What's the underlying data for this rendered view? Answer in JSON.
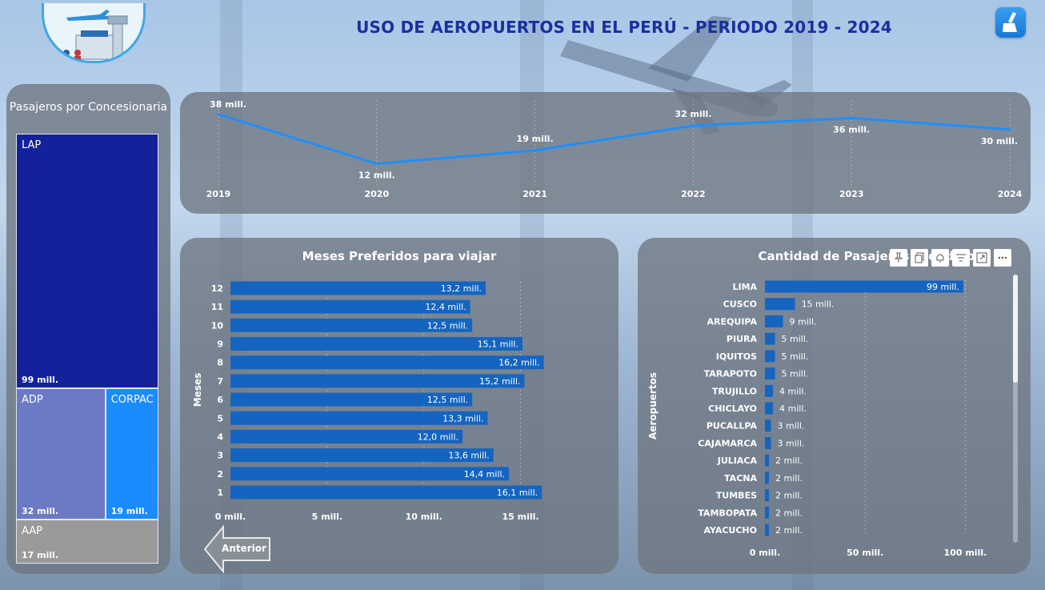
{
  "header": {
    "title": "USO DE AEROPUERTOS EN EL PERÚ - PERIODO  2019 - 2024"
  },
  "colors": {
    "accent_line": "#1e8fff",
    "bar": "#1565c0",
    "lap": "#13229a",
    "adp": "#6c79c4",
    "corpac": "#1a8cff",
    "aap": "#9a9a9a",
    "panel": "#6e7680"
  },
  "icons": [
    "airport-logo-icon",
    "broom-icon",
    "pin-icon",
    "copy-icon",
    "bell-icon",
    "filter-icon",
    "focus-mode-icon",
    "more-options-icon",
    "arrow-left-icon"
  ],
  "chart_data": [
    {
      "type": "treemap",
      "title": "Pasajeros por Concesionaria",
      "categories": [
        "LAP",
        "ADP",
        "CORPAC",
        "AAP"
      ],
      "values": [
        99,
        32,
        19,
        17
      ],
      "value_labels": [
        "99 mill.",
        "32 mill.",
        "19 mill.",
        "17 mill."
      ]
    },
    {
      "type": "line",
      "title": "",
      "x": [
        "2019",
        "2020",
        "2021",
        "2022",
        "2023",
        "2024"
      ],
      "values": [
        38,
        12,
        19,
        32,
        36,
        30
      ],
      "value_labels": [
        "38 mill.",
        "12 mill.",
        "19 mill.",
        "32 mill.",
        "36 mill.",
        "30 mill."
      ],
      "ylim": [
        0,
        40
      ]
    },
    {
      "type": "bar",
      "orientation": "horizontal",
      "title": "Meses Preferidos para viajar",
      "ylabel": "Meses",
      "categories": [
        "12",
        "11",
        "10",
        "9",
        "8",
        "7",
        "6",
        "5",
        "4",
        "3",
        "2",
        "1"
      ],
      "values": [
        13.2,
        12.4,
        12.5,
        15.1,
        16.2,
        15.2,
        12.5,
        13.3,
        12.0,
        13.6,
        14.4,
        16.1
      ],
      "value_labels": [
        "13,2 mill.",
        "12,4 mill.",
        "12,5 mill.",
        "15,1 mill.",
        "16,2 mill.",
        "15,2 mill.",
        "12,5 mill.",
        "13,3 mill.",
        "12,0 mill.",
        "13,6 mill.",
        "14,4 mill.",
        "16,1 mill."
      ],
      "xticks": [
        "0 mill.",
        "5 mill.",
        "10 mill.",
        "15 mill."
      ],
      "xlim": [
        0,
        17.5
      ]
    },
    {
      "type": "bar",
      "orientation": "horizontal",
      "title": "Cantidad de Pasajeros Atendidos",
      "ylabel": "Aeropuertos",
      "categories": [
        "LIMA",
        "CUSCO",
        "AREQUIPA",
        "PIURA",
        "IQUITOS",
        "TARAPOTO",
        "TRUJILLO",
        "CHICLAYO",
        "PUCALLPA",
        "CAJAMARCA",
        "JULIACA",
        "TACNA",
        "TUMBES",
        "TAMBOPATA",
        "AYACUCHO"
      ],
      "values": [
        99,
        15,
        9,
        5,
        5,
        5,
        4,
        4,
        3,
        3,
        2,
        2,
        2,
        2,
        2
      ],
      "value_labels": [
        "99 mill.",
        "15 mill.",
        "9 mill.",
        "5 mill.",
        "5 mill.",
        "5 mill.",
        "4 mill.",
        "4 mill.",
        "3 mill.",
        "3 mill.",
        "2 mill.",
        "2 mill.",
        "2 mill.",
        "2 mill.",
        "2 mill."
      ],
      "xticks": [
        "0 mill.",
        "50 mill.",
        "100 mill."
      ],
      "xlim": [
        0,
        115
      ]
    }
  ],
  "nav": {
    "back_label": "Anterior"
  }
}
